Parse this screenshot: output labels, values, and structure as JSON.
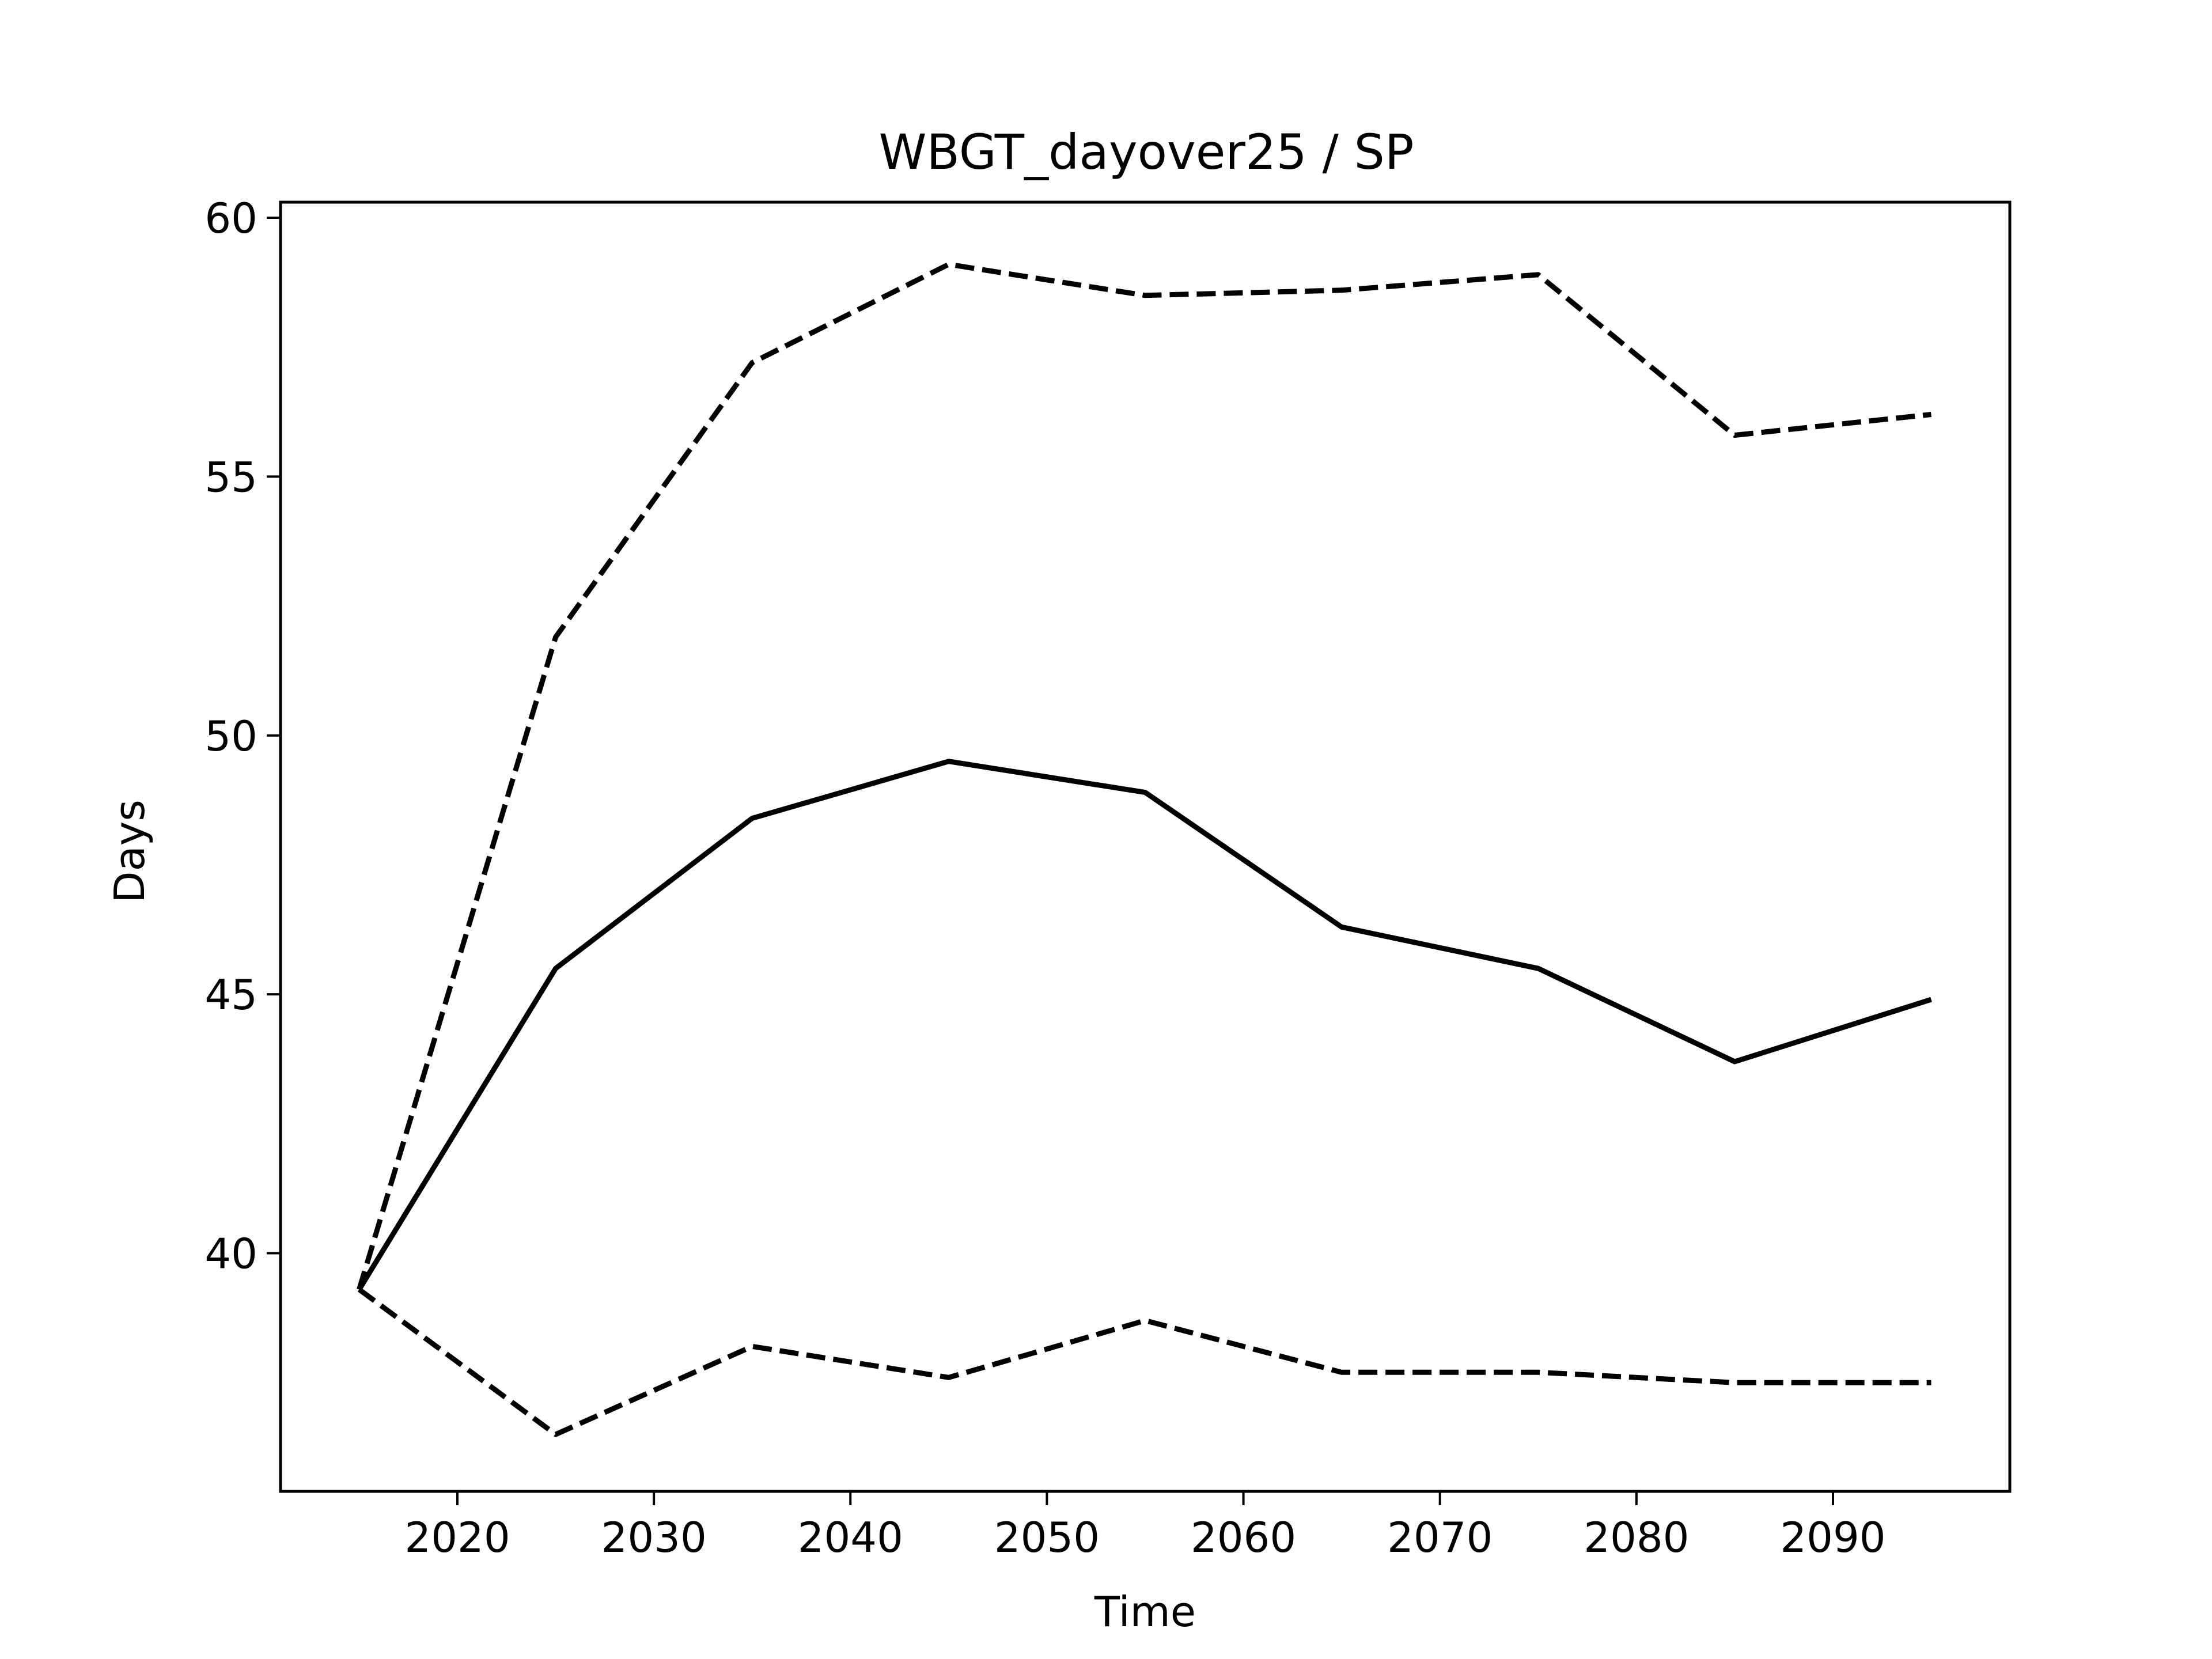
{
  "chart_data": {
    "type": "line",
    "title": "WBGT_dayover25 / SP",
    "xlabel": "Time",
    "ylabel": "Days",
    "xlim": [
      2011,
      2099
    ],
    "ylim": [
      35.4,
      60.3
    ],
    "xticks": [
      2020,
      2030,
      2040,
      2050,
      2060,
      2070,
      2080,
      2090
    ],
    "yticks": [
      40,
      45,
      50,
      55,
      60
    ],
    "grid": false,
    "legend": "none",
    "x": [
      2015,
      2025,
      2035,
      2045,
      2055,
      2065,
      2075,
      2085,
      2095
    ],
    "series": [
      {
        "style": "solid",
        "color": "#000000",
        "values": [
          39.3,
          45.5,
          48.4,
          49.5,
          48.9,
          46.3,
          45.5,
          43.7,
          44.9
        ]
      },
      {
        "style": "dashed",
        "color": "#000000",
        "values": [
          39.3,
          51.9,
          57.2,
          59.1,
          58.5,
          58.6,
          58.9,
          55.8,
          56.2
        ]
      },
      {
        "style": "dashed",
        "color": "#000000",
        "values": [
          39.3,
          36.5,
          38.2,
          37.6,
          38.7,
          37.7,
          37.7,
          37.5,
          37.5
        ]
      }
    ]
  }
}
